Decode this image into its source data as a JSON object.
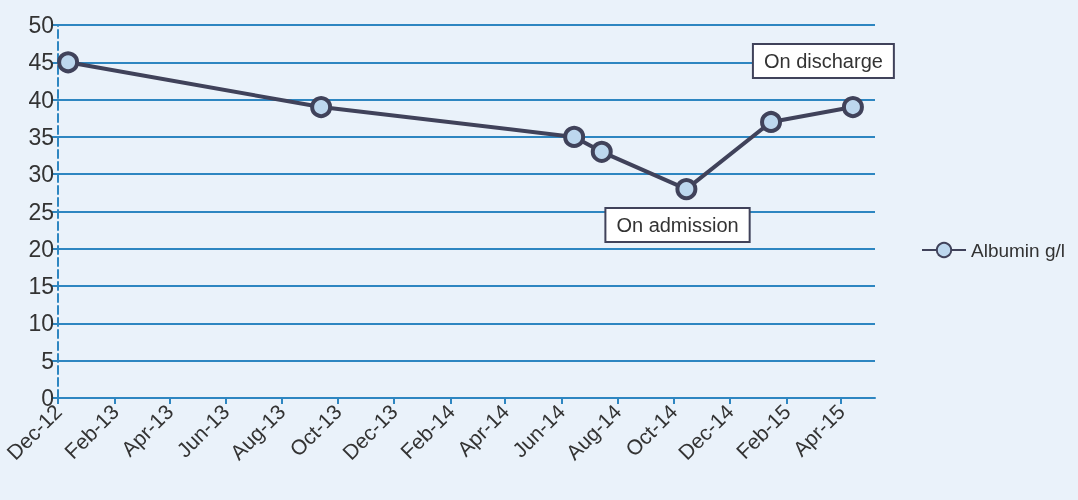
{
  "chart_data": {
    "type": "line",
    "x": [
      "2012-12-12",
      "2013-09-13",
      "2014-06-15",
      "2014-07-15",
      "2014-10-15",
      "2015-01-15",
      "2015-04-14"
    ],
    "series": [
      {
        "name": "Albumin g/l",
        "color": "#40425a",
        "values": [
          45,
          39,
          35,
          33,
          28,
          37,
          39
        ]
      }
    ],
    "xlim": [
      "2012-12-01",
      "2015-05-08"
    ],
    "xticks": [
      {
        "value": "2012-12-01",
        "label": "Dec-12"
      },
      {
        "value": "2013-02-01",
        "label": "Feb-13"
      },
      {
        "value": "2013-04-01",
        "label": "Apr-13"
      },
      {
        "value": "2013-06-01",
        "label": "Jun-13"
      },
      {
        "value": "2013-08-01",
        "label": "Aug-13"
      },
      {
        "value": "2013-10-01",
        "label": "Oct-13"
      },
      {
        "value": "2013-12-01",
        "label": "Dec-13"
      },
      {
        "value": "2014-02-01",
        "label": "Feb-14"
      },
      {
        "value": "2014-04-01",
        "label": "Apr-14"
      },
      {
        "value": "2014-06-01",
        "label": "Jun-14"
      },
      {
        "value": "2014-08-01",
        "label": "Aug-14"
      },
      {
        "value": "2014-10-01",
        "label": "Oct-14"
      },
      {
        "value": "2014-12-01",
        "label": "Dec-14"
      },
      {
        "value": "2015-02-01",
        "label": "Feb-15"
      },
      {
        "value": "2015-04-01",
        "label": "Apr-15"
      }
    ],
    "ylim": [
      0,
      50
    ],
    "yticks": [
      0,
      5,
      10,
      15,
      20,
      25,
      30,
      35,
      40,
      45,
      50
    ],
    "grid": "y",
    "legend": "right",
    "marker": "circle",
    "line_style": "solid",
    "annotations": [
      {
        "text": "On discharge",
        "x": "2015-04-14",
        "y": 39
      },
      {
        "text": "On admission",
        "x": "2014-10-15",
        "y": 28
      }
    ]
  }
}
